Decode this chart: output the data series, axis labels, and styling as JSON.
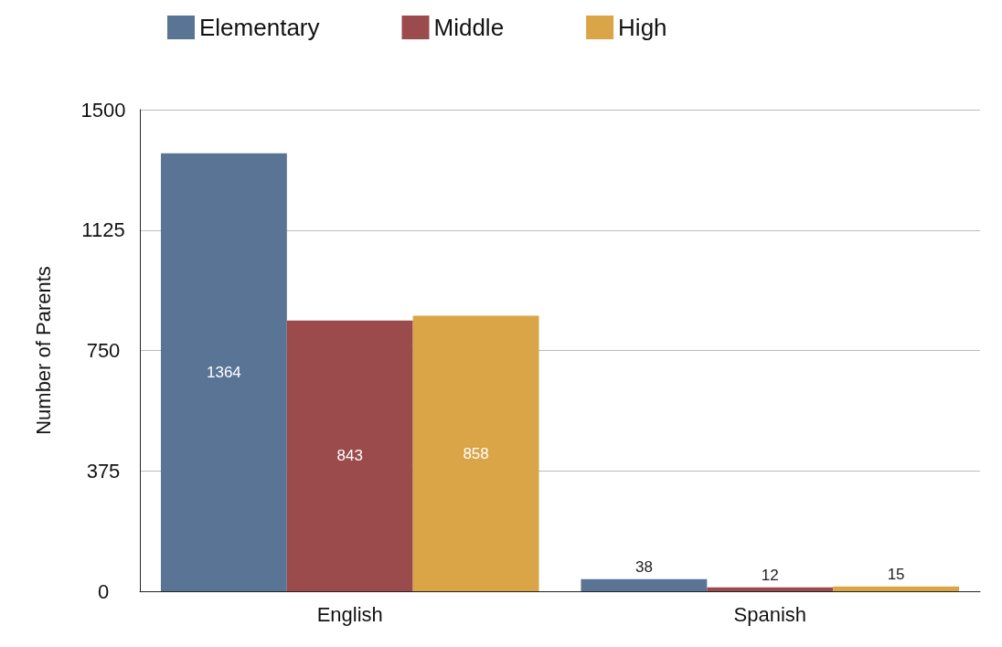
{
  "chart_data": {
    "type": "bar",
    "ylabel": "Number of Parents",
    "categories": [
      "English",
      "Spanish"
    ],
    "series": [
      {
        "name": "Elementary",
        "color": "#5a7496",
        "values": [
          1364,
          38
        ]
      },
      {
        "name": "Middle",
        "color": "#9c4b4c",
        "values": [
          843,
          12
        ]
      },
      {
        "name": "High",
        "color": "#d9a547",
        "values": [
          858,
          15
        ]
      }
    ],
    "ylim": [
      0,
      1500
    ],
    "yticks": [
      0,
      375,
      750,
      1125,
      1500
    ],
    "grid": "y",
    "legend": "top",
    "data_labels": true
  }
}
